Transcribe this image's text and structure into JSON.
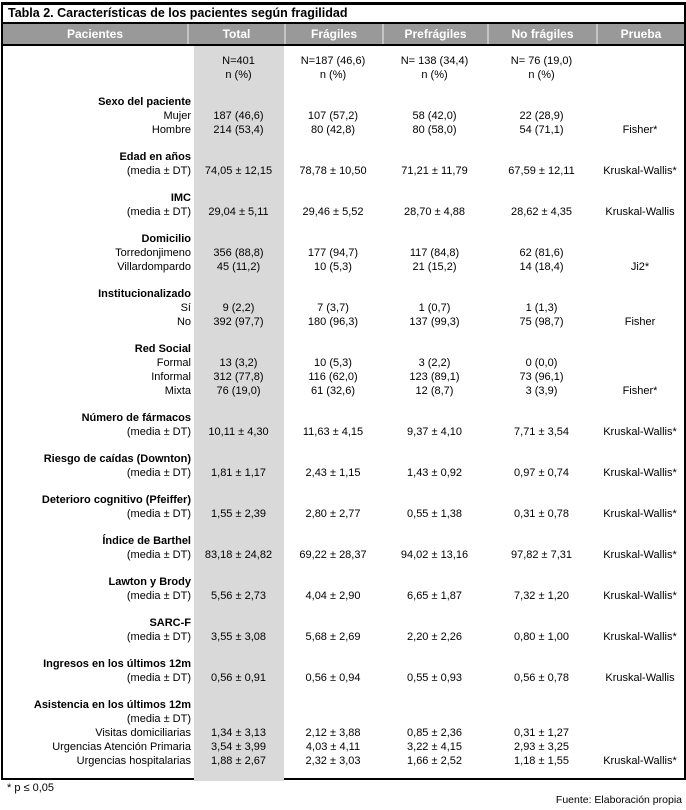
{
  "page": {
    "footnote": "* p ≤ 0,05",
    "source": "Fuente: Elaboración propia"
  },
  "colors": {
    "header_bg": "#999999",
    "header_text": "#ffffff",
    "total_column_stripe": "#d9d9d9",
    "border": "#000000"
  },
  "table": {
    "title": "Tabla 2. Características de los pacientes según fragilidad",
    "header": {
      "columns": [
        "Pacientes",
        "Total",
        "Frágiles",
        "Prefrágiles",
        "No frágiles",
        "Prueba"
      ]
    },
    "counts": {
      "total": {
        "n": "N=401",
        "pct": "n (%)"
      },
      "fragiles": {
        "n": "N=187 (46,6)",
        "pct": "n (%)"
      },
      "prefragiles": {
        "n": "N= 138 (34,4)",
        "pct": "n (%)"
      },
      "nofragiles": {
        "n": "N= 76 (19,0)",
        "pct": "n (%)"
      }
    },
    "blocks": [
      {
        "label": "Sexo del paciente",
        "items": [
          {
            "name": "Mujer",
            "total": "187 (46,6)",
            "fragiles": "107 (57,2)",
            "prefragiles": "58 (42,0)",
            "nofragiles": "22 (28,9)",
            "prueba": ""
          },
          {
            "name": "Hombre",
            "total": "214 (53,4)",
            "fragiles": "80 (42,8)",
            "prefragiles": "80 (58,0)",
            "nofragiles": "54 (71,1)",
            "prueba": "Fisher*"
          }
        ]
      },
      {
        "label": "Edad en años",
        "sublabel": "(media ± DT)",
        "values": {
          "total": "74,05 ± 12,15",
          "fragiles": "78,78 ± 10,50",
          "prefragiles": "71,21 ± 11,79",
          "nofragiles": "67,59 ± 12,11",
          "prueba": "Kruskal-Wallis*"
        }
      },
      {
        "label": "IMC",
        "sublabel": "(media ± DT)",
        "values": {
          "total": "29,04 ± 5,11",
          "fragiles": "29,46 ± 5,52",
          "prefragiles": "28,70 ± 4,88",
          "nofragiles": "28,62 ± 4,35",
          "prueba": "Kruskal-Wallis"
        }
      },
      {
        "label": "Domicilio",
        "items": [
          {
            "name": "Torredonjimeno",
            "total": "356 (88,8)",
            "fragiles": "177 (94,7)",
            "prefragiles": "117 (84,8)",
            "nofragiles": "62 (81,6)",
            "prueba": ""
          },
          {
            "name": "Villardompardo",
            "total": "45 (11,2)",
            "fragiles": "10 (5,3)",
            "prefragiles": "21 (15,2)",
            "nofragiles": "14 (18,4)",
            "prueba": "Ji2*"
          }
        ]
      },
      {
        "label": "Institucionalizado",
        "items": [
          {
            "name": "Sí",
            "total": "9 (2,2)",
            "fragiles": "7 (3,7)",
            "prefragiles": "1 (0,7)",
            "nofragiles": "1 (1,3)",
            "prueba": ""
          },
          {
            "name": "No",
            "total": "392 (97,7)",
            "fragiles": "180 (96,3)",
            "prefragiles": "137 (99,3)",
            "nofragiles": "75 (98,7)",
            "prueba": "Fisher"
          }
        ]
      },
      {
        "label": "Red Social",
        "items": [
          {
            "name": "Formal",
            "total": "13 (3,2)",
            "fragiles": "10 (5,3)",
            "prefragiles": "3 (2,2)",
            "nofragiles": "0 (0,0)",
            "prueba": ""
          },
          {
            "name": "Informal",
            "total": "312 (77,8)",
            "fragiles": "116 (62,0)",
            "prefragiles": "123 (89,1)",
            "nofragiles": "73 (96,1)",
            "prueba": ""
          },
          {
            "name": "Mixta",
            "total": "76 (19,0)",
            "fragiles": "61 (32,6)",
            "prefragiles": "12 (8,7)",
            "nofragiles": "3 (3,9)",
            "prueba": "Fisher*"
          }
        ]
      },
      {
        "label": "Número de fármacos",
        "sublabel": "(media ± DT)",
        "values": {
          "total": "10,11 ± 4,30",
          "fragiles": "11,63 ± 4,15",
          "prefragiles": "9,37 ± 4,10",
          "nofragiles": "7,71 ± 3,54",
          "prueba": "Kruskal-Wallis*"
        }
      },
      {
        "label": "Riesgo de caídas (Downton)",
        "sublabel": "(media ± DT)",
        "values": {
          "total": "1,81 ± 1,17",
          "fragiles": "2,43 ± 1,15",
          "prefragiles": "1,43 ± 0,92",
          "nofragiles": "0,97 ± 0,74",
          "prueba": "Kruskal-Wallis*"
        }
      },
      {
        "label": "Deterioro cognitivo (Pfeiffer)",
        "sublabel": "(media ± DT)",
        "values": {
          "total": "1,55 ± 2,39",
          "fragiles": "2,80 ± 2,77",
          "prefragiles": "0,55 ± 1,38",
          "nofragiles": "0,31 ± 0,78",
          "prueba": "Kruskal-Wallis*"
        }
      },
      {
        "label": "Índice de Barthel",
        "sublabel": "(media ± DT)",
        "values": {
          "total": "83,18 ± 24,82",
          "fragiles": "69,22 ± 28,37",
          "prefragiles": "94,02 ± 13,16",
          "nofragiles": "97,82 ± 7,31",
          "prueba": "Kruskal-Wallis*"
        }
      },
      {
        "label": "Lawton y Brody",
        "sublabel": "(media ± DT)",
        "values": {
          "total": "5,56 ± 2,73",
          "fragiles": "4,04 ± 2,90",
          "prefragiles": "6,65 ± 1,87",
          "nofragiles": "7,32 ± 1,20",
          "prueba": "Kruskal-Wallis*"
        }
      },
      {
        "label": "SARC-F",
        "sublabel": "(media ± DT)",
        "values": {
          "total": "3,55 ± 3,08",
          "fragiles": "5,68 ± 2,69",
          "prefragiles": "2,20 ± 2,26",
          "nofragiles": "0,80 ± 1,00",
          "prueba": "Kruskal-Wallis*"
        }
      },
      {
        "label": "Ingresos en los últimos 12m",
        "sublabel": "(media ± DT)",
        "values": {
          "total": "0,56 ± 0,91",
          "fragiles": "0,56 ± 0,94",
          "prefragiles": "0,55 ± 0,93",
          "nofragiles": "0,56 ± 0,78",
          "prueba": "Kruskal-Wallis"
        }
      },
      {
        "label": "Asistencia en los últimos 12m",
        "sublabel": "(media ± DT)",
        "items": [
          {
            "name": "Visitas domiciliarias",
            "total": "1,34 ± 3,13",
            "fragiles": "2,12 ± 3,88",
            "prefragiles": "0,85 ± 2,36",
            "nofragiles": "0,31 ± 1,27",
            "prueba": ""
          },
          {
            "name": "Urgencias Atención Primaria",
            "total": "3,54 ± 3,99",
            "fragiles": "4,03 ± 4,11",
            "prefragiles": "3,22 ± 4,15",
            "nofragiles": "2,93 ± 3,25",
            "prueba": ""
          },
          {
            "name": "Urgencias hospitalarias",
            "total": "1,88 ± 2,67",
            "fragiles": "2,32 ± 3,03",
            "prefragiles": "1,66 ± 2,52",
            "nofragiles": "1,18 ± 1,55",
            "prueba": "Kruskal-Wallis*"
          }
        ]
      }
    ]
  }
}
